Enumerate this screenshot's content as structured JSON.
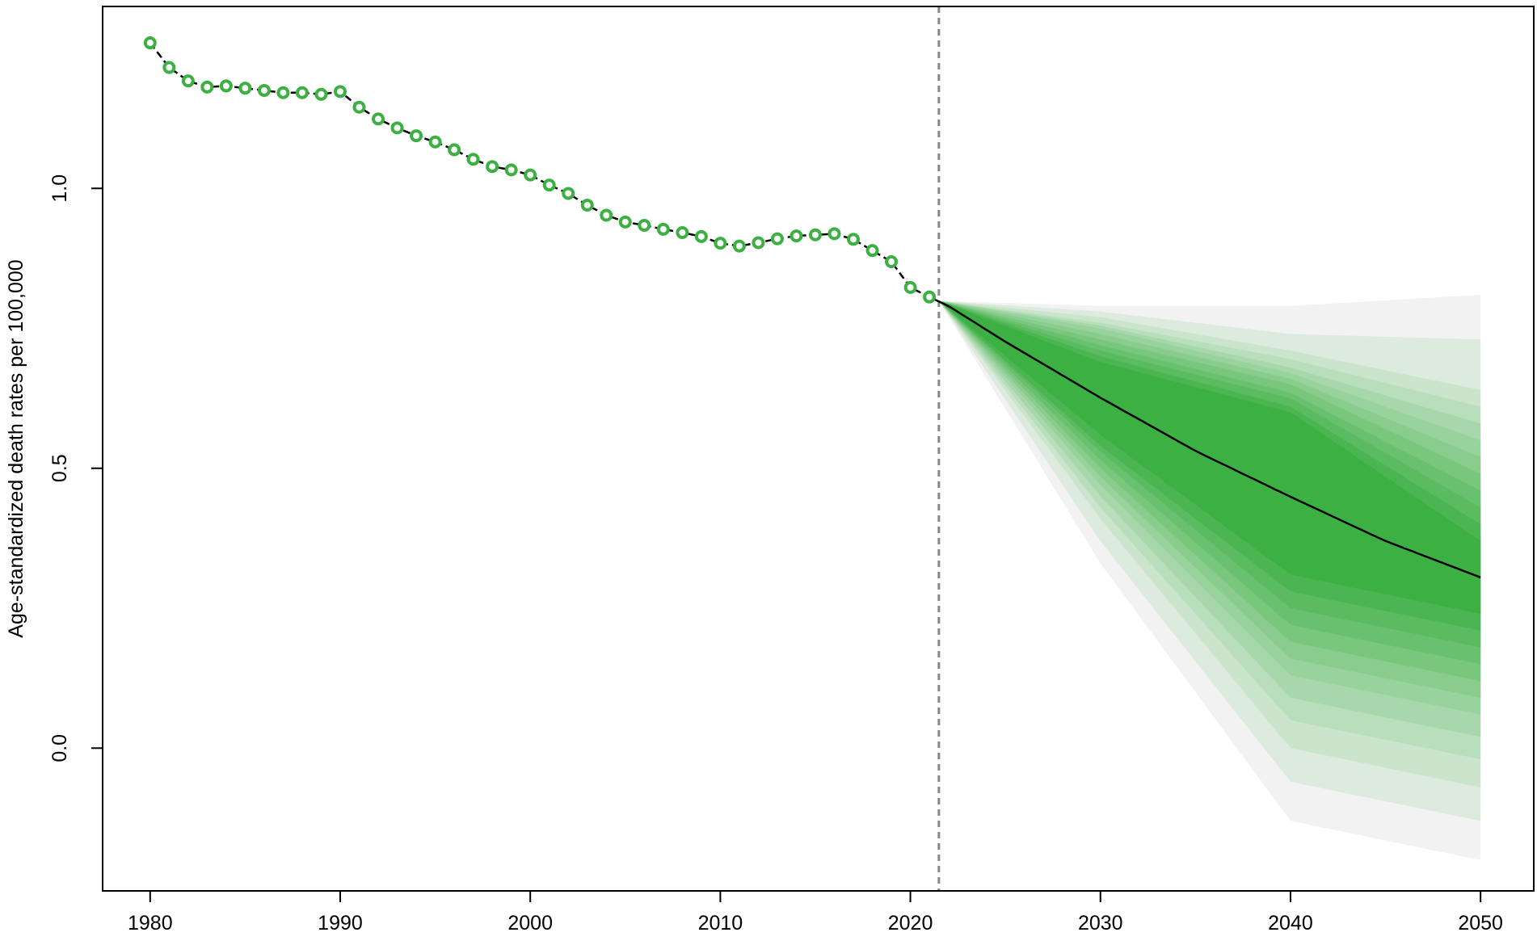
{
  "chart_data": {
    "type": "line",
    "title": "",
    "xlabel": "",
    "ylabel": "Age-standardized death rates per 100,000",
    "xlim": [
      1977.5,
      2052.8
    ],
    "ylim": [
      -0.255,
      1.325
    ],
    "x_ticks": [
      1980,
      1990,
      2000,
      2010,
      2020,
      2030,
      2040,
      2050
    ],
    "x_tick_labels": [
      "1980",
      "1990",
      "2000",
      "2010",
      "2020",
      "2030",
      "2040",
      "2050"
    ],
    "y_ticks": [
      0.0,
      0.5,
      1.0
    ],
    "y_tick_labels": [
      "0.0",
      "0.5",
      "1.0"
    ],
    "grid": false,
    "legend": "none",
    "forecast_start_marker": 2021.5,
    "colors": {
      "observed_point": "#3cb043",
      "line": "#000000",
      "band_outer": "#f2f2f2",
      "band_inner": "#3cb043",
      "divider": "#888888"
    },
    "series": [
      {
        "type": "observed",
        "x": [
          1980,
          1981,
          1982,
          1983,
          1984,
          1985,
          1986,
          1987,
          1988,
          1989,
          1990,
          1991,
          1992,
          1993,
          1994,
          1995,
          1996,
          1997,
          1998,
          1999,
          2000,
          2001,
          2002,
          2003,
          2004,
          2005,
          2006,
          2007,
          2008,
          2009,
          2010,
          2011,
          2012,
          2013,
          2014,
          2015,
          2016,
          2017,
          2018,
          2019,
          2020,
          2021
        ],
        "values": [
          1.26,
          1.216,
          1.192,
          1.181,
          1.183,
          1.179,
          1.175,
          1.171,
          1.171,
          1.168,
          1.173,
          1.145,
          1.124,
          1.108,
          1.094,
          1.083,
          1.069,
          1.052,
          1.039,
          1.033,
          1.024,
          1.006,
          0.991,
          0.97,
          0.952,
          0.94,
          0.934,
          0.927,
          0.921,
          0.914,
          0.902,
          0.897,
          0.903,
          0.91,
          0.915,
          0.917,
          0.919,
          0.909,
          0.889,
          0.869,
          0.823,
          0.806
        ]
      },
      {
        "type": "forecast",
        "x": [
          2021,
          2022,
          2025,
          2030,
          2035,
          2040,
          2045,
          2050
        ],
        "values": [
          0.806,
          0.79,
          0.726,
          0.626,
          0.531,
          0.449,
          0.37,
          0.305
        ]
      }
    ],
    "uncertainty_bands": {
      "x": [
        2021.5,
        2030,
        2040,
        2050
      ],
      "levels": [
        {
          "lower": [
            0.799,
            0.56,
            0.31,
            0.24
          ],
          "upper": [
            0.799,
            0.69,
            0.6,
            0.37
          ]
        },
        {
          "lower": [
            0.799,
            0.54,
            0.28,
            0.21
          ],
          "upper": [
            0.799,
            0.7,
            0.61,
            0.4
          ]
        },
        {
          "lower": [
            0.799,
            0.53,
            0.25,
            0.18
          ],
          "upper": [
            0.799,
            0.71,
            0.625,
            0.43
          ]
        },
        {
          "lower": [
            0.799,
            0.515,
            0.22,
            0.15
          ],
          "upper": [
            0.799,
            0.72,
            0.635,
            0.46
          ]
        },
        {
          "lower": [
            0.799,
            0.5,
            0.19,
            0.12
          ],
          "upper": [
            0.799,
            0.73,
            0.65,
            0.49
          ]
        },
        {
          "lower": [
            0.799,
            0.485,
            0.16,
            0.09
          ],
          "upper": [
            0.799,
            0.74,
            0.66,
            0.52
          ]
        },
        {
          "lower": [
            0.799,
            0.47,
            0.13,
            0.06
          ],
          "upper": [
            0.799,
            0.75,
            0.67,
            0.55
          ]
        },
        {
          "lower": [
            0.799,
            0.45,
            0.09,
            0.02
          ],
          "upper": [
            0.799,
            0.755,
            0.68,
            0.58
          ]
        },
        {
          "lower": [
            0.799,
            0.43,
            0.05,
            -0.02
          ],
          "upper": [
            0.799,
            0.76,
            0.695,
            0.61
          ]
        },
        {
          "lower": [
            0.799,
            0.41,
            0.0,
            -0.07
          ],
          "upper": [
            0.799,
            0.77,
            0.71,
            0.64
          ]
        },
        {
          "lower": [
            0.799,
            0.37,
            -0.06,
            -0.13
          ],
          "upper": [
            0.799,
            0.78,
            0.74,
            0.73
          ]
        },
        {
          "lower": [
            0.799,
            0.33,
            -0.13,
            -0.2
          ],
          "upper": [
            0.799,
            0.79,
            0.79,
            0.81
          ]
        }
      ]
    }
  }
}
